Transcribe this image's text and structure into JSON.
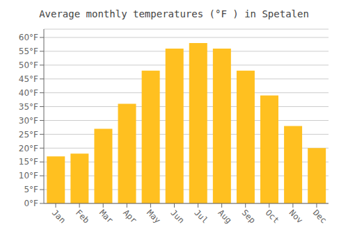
{
  "chart_data": {
    "type": "bar",
    "title": "Average monthly temperatures (°F ) in Spetalen",
    "categories": [
      "Jan",
      "Feb",
      "Mar",
      "Apr",
      "May",
      "Jun",
      "Jul",
      "Aug",
      "Sep",
      "Oct",
      "Nov",
      "Dec"
    ],
    "values": [
      17,
      18,
      27,
      36,
      48,
      56,
      58,
      56,
      48,
      39,
      28,
      20
    ],
    "color": "#FFC020",
    "ylim": [
      0,
      63
    ],
    "yticks": [
      {
        "value": 0,
        "label": "0°F"
      },
      {
        "value": 5,
        "label": "5°F"
      },
      {
        "value": 10,
        "label": "10°F"
      },
      {
        "value": 15,
        "label": "15°F"
      },
      {
        "value": 20,
        "label": "20°F"
      },
      {
        "value": 25,
        "label": "25°F"
      },
      {
        "value": 30,
        "label": "30°F"
      },
      {
        "value": 35,
        "label": "35°F"
      },
      {
        "value": 40,
        "label": "40°F"
      },
      {
        "value": 45,
        "label": "45°F"
      },
      {
        "value": 50,
        "label": "50°F"
      },
      {
        "value": 55,
        "label": "55°F"
      },
      {
        "value": 60,
        "label": "60°F"
      }
    ],
    "grid": true
  }
}
